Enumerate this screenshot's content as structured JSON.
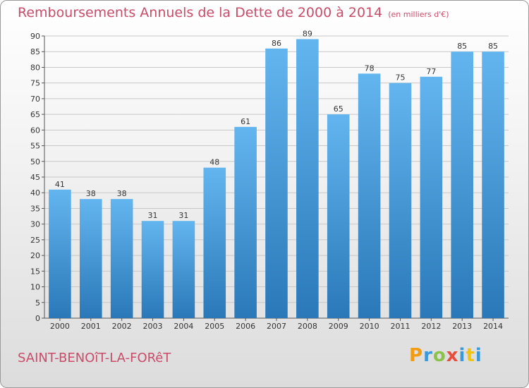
{
  "header": {
    "title": "Remboursements Annuels de la Dette de 2000 à 2014",
    "unit": "(en milliers d'€)"
  },
  "footer": {
    "town": "SAINT-BENOîT-LA-FORêT",
    "brand": "Proxiti",
    "brand_colors": [
      "#f39c12",
      "#3a9ad9",
      "#8bc34a",
      "#e74c3c",
      "#3a9ad9",
      "#f1c40f",
      "#3a9ad9"
    ]
  },
  "colors": {
    "bar_top": "#63b5ef",
    "bar_bottom": "#2a78b8",
    "title": "#c94c69",
    "grid": "#c8c8c8"
  },
  "chart_data": {
    "type": "bar",
    "categories": [
      "2000",
      "2001",
      "2002",
      "2003",
      "2004",
      "2005",
      "2006",
      "2007",
      "2008",
      "2009",
      "2010",
      "2011",
      "2012",
      "2013",
      "2014"
    ],
    "values": [
      41,
      38,
      38,
      31,
      31,
      48,
      61,
      86,
      89,
      65,
      78,
      75,
      77,
      85,
      85
    ],
    "ylim": [
      0,
      90
    ],
    "yticks": [
      0,
      5,
      10,
      15,
      20,
      25,
      30,
      35,
      40,
      45,
      50,
      55,
      60,
      65,
      70,
      75,
      80,
      85,
      90
    ],
    "grid": true,
    "title": "Remboursements Annuels de la Dette de 2000 à 2014",
    "xlabel": "",
    "ylabel": ""
  }
}
